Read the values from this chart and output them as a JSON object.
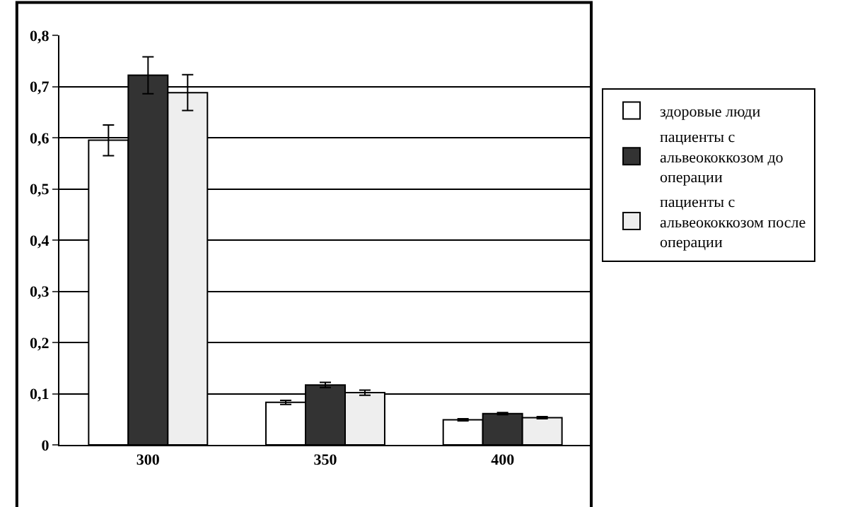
{
  "chart_data": {
    "type": "bar",
    "categories": [
      "300",
      "350",
      "400"
    ],
    "series": [
      {
        "name": "здоровые люди",
        "color": "#ffffff",
        "values": [
          0.595,
          0.083,
          0.049
        ],
        "errors": [
          0.03,
          0.004,
          0.002
        ]
      },
      {
        "name": "пациенты с альвеококкозом до операции",
        "color": "#333333",
        "values": [
          0.722,
          0.117,
          0.061
        ],
        "errors": [
          0.036,
          0.005,
          0.002
        ]
      },
      {
        "name": "пациенты с альвеококкозом после операции",
        "color": "#eeeeee",
        "values": [
          0.688,
          0.102,
          0.053
        ],
        "errors": [
          0.035,
          0.005,
          0.002
        ]
      }
    ],
    "ylim": [
      0,
      0.8
    ],
    "yticks": [
      {
        "value": 0,
        "label": "0"
      },
      {
        "value": 0.1,
        "label": "0,1"
      },
      {
        "value": 0.2,
        "label": "0,2"
      },
      {
        "value": 0.3,
        "label": "0,3"
      },
      {
        "value": 0.4,
        "label": "0,4"
      },
      {
        "value": 0.5,
        "label": "0,5"
      },
      {
        "value": 0.6,
        "label": "0,6"
      },
      {
        "value": 0.7,
        "label": "0,7"
      },
      {
        "value": 0.8,
        "label": "0,8"
      }
    ],
    "grid": "y",
    "legend": "right"
  }
}
